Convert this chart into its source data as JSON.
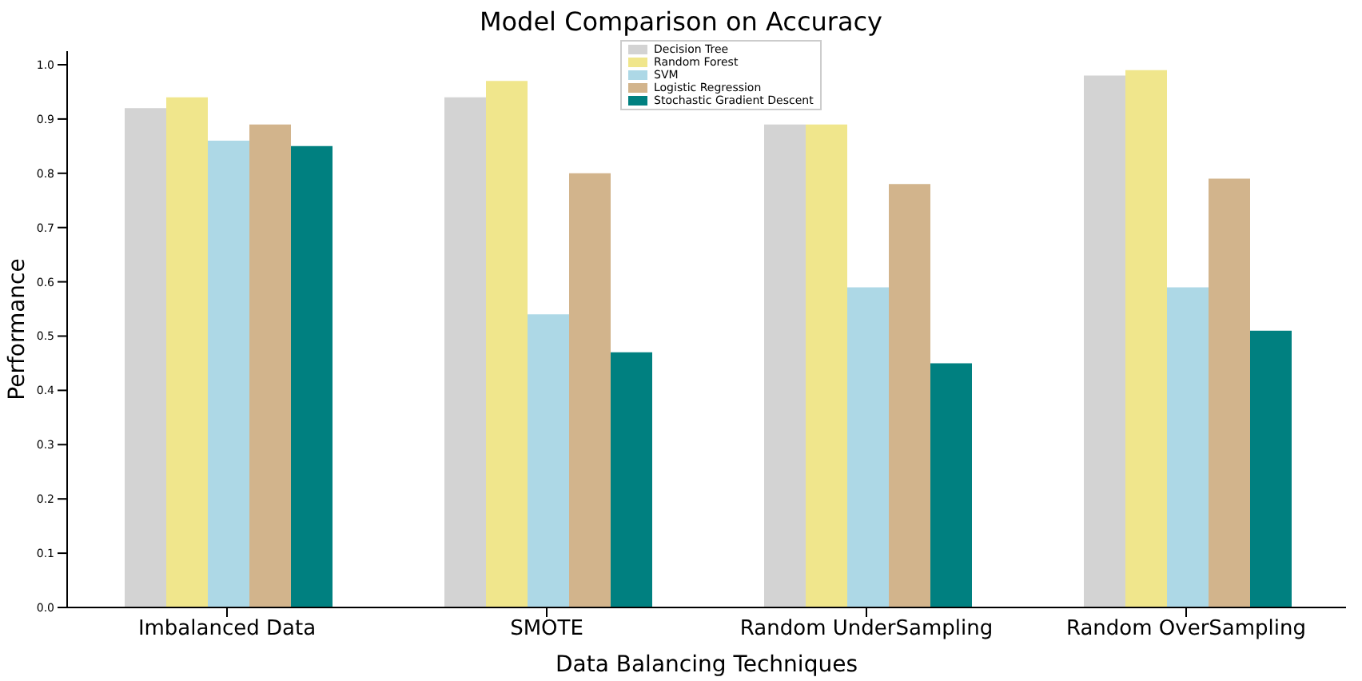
{
  "chart_data": {
    "type": "bar",
    "title": "Model Comparison on Accuracy",
    "xlabel": "Data Balancing Techniques",
    "ylabel": "Performance",
    "categories": [
      "Imbalanced Data",
      "SMOTE",
      "Random UnderSampling",
      "Random OverSampling"
    ],
    "series": [
      {
        "name": "Decision Tree",
        "color": "#d3d3d3",
        "values": [
          0.92,
          0.94,
          0.89,
          0.98
        ]
      },
      {
        "name": "Random Forest",
        "color": "#f0e68c",
        "values": [
          0.94,
          0.97,
          0.89,
          0.99
        ]
      },
      {
        "name": "SVM",
        "color": "#add8e6",
        "values": [
          0.86,
          0.54,
          0.59,
          0.59
        ]
      },
      {
        "name": "Logistic Regression",
        "color": "#d2b48c",
        "values": [
          0.89,
          0.8,
          0.78,
          0.79
        ]
      },
      {
        "name": "Stochastic Gradient Descent",
        "color": "#008080",
        "values": [
          0.85,
          0.47,
          0.45,
          0.51
        ]
      }
    ],
    "ylim": [
      0,
      1.025
    ],
    "yticks": [
      {
        "value": 0,
        "label": "0.0"
      },
      0.1,
      0.2,
      0.3,
      0.4,
      0.5,
      0.6,
      0.7,
      0.8,
      0.9,
      {
        "value": 1,
        "label": "1.0"
      }
    ],
    "grid": false,
    "legend": "top"
  }
}
